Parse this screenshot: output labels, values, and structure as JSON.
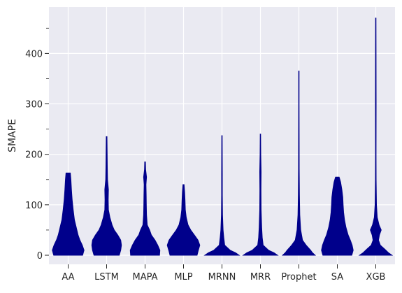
{
  "chart_data": {
    "type": "violin",
    "ylabel": "SMAPE",
    "xlabel": "",
    "title": "",
    "ylim": [
      -18,
      492
    ],
    "yticks_major": [
      0,
      100,
      200,
      300,
      400
    ],
    "yticks_minor": [
      50,
      150,
      250,
      350,
      450
    ],
    "grid": true,
    "categories": [
      "AA",
      "LSTM",
      "MAPA",
      "MLP",
      "MRNN",
      "MRR",
      "Prophet",
      "SA",
      "XGB"
    ],
    "colors": {
      "background": "#eaeaf2",
      "grid": "#ffffff",
      "violin": "#00008b"
    },
    "violins": [
      {
        "category": "AA",
        "profile": [
          [
            0,
            0.8
          ],
          [
            10,
            0.88
          ],
          [
            20,
            0.78
          ],
          [
            30,
            0.65
          ],
          [
            40,
            0.55
          ],
          [
            55,
            0.45
          ],
          [
            70,
            0.35
          ],
          [
            90,
            0.28
          ],
          [
            110,
            0.22
          ],
          [
            130,
            0.18
          ],
          [
            150,
            0.15
          ],
          [
            163,
            0.12
          ]
        ]
      },
      {
        "category": "LSTM",
        "profile": [
          [
            0,
            0.7
          ],
          [
            10,
            0.78
          ],
          [
            20,
            0.82
          ],
          [
            30,
            0.78
          ],
          [
            40,
            0.62
          ],
          [
            50,
            0.42
          ],
          [
            60,
            0.3
          ],
          [
            75,
            0.18
          ],
          [
            90,
            0.1
          ],
          [
            110,
            0.09
          ],
          [
            130,
            0.1
          ],
          [
            150,
            0.05
          ],
          [
            175,
            0.04
          ],
          [
            200,
            0.03
          ],
          [
            235,
            0.02
          ]
        ]
      },
      {
        "category": "MAPA",
        "profile": [
          [
            0,
            0.8
          ],
          [
            10,
            0.82
          ],
          [
            20,
            0.7
          ],
          [
            30,
            0.55
          ],
          [
            40,
            0.35
          ],
          [
            50,
            0.25
          ],
          [
            60,
            0.12
          ],
          [
            80,
            0.08
          ],
          [
            100,
            0.07
          ],
          [
            120,
            0.06
          ],
          [
            140,
            0.05
          ],
          [
            155,
            0.08
          ],
          [
            170,
            0.03
          ],
          [
            185,
            0.02
          ]
        ]
      },
      {
        "category": "MLP",
        "profile": [
          [
            0,
            0.75
          ],
          [
            10,
            0.82
          ],
          [
            20,
            0.9
          ],
          [
            30,
            0.8
          ],
          [
            40,
            0.6
          ],
          [
            50,
            0.4
          ],
          [
            60,
            0.25
          ],
          [
            75,
            0.15
          ],
          [
            90,
            0.1
          ],
          [
            110,
            0.08
          ],
          [
            125,
            0.06
          ],
          [
            140,
            0.03
          ]
        ]
      },
      {
        "category": "MRNN",
        "profile": [
          [
            0,
            0.95
          ],
          [
            5,
            0.75
          ],
          [
            10,
            0.45
          ],
          [
            20,
            0.15
          ],
          [
            35,
            0.1
          ],
          [
            50,
            0.06
          ],
          [
            80,
            0.03
          ],
          [
            120,
            0.02
          ],
          [
            160,
            0.02
          ],
          [
            200,
            0.015
          ],
          [
            237,
            0.01
          ]
        ]
      },
      {
        "category": "MRR",
        "profile": [
          [
            0,
            0.95
          ],
          [
            5,
            0.75
          ],
          [
            10,
            0.45
          ],
          [
            20,
            0.15
          ],
          [
            35,
            0.1
          ],
          [
            55,
            0.07
          ],
          [
            90,
            0.04
          ],
          [
            130,
            0.03
          ],
          [
            165,
            0.04
          ],
          [
            200,
            0.02
          ],
          [
            240,
            0.01
          ]
        ]
      },
      {
        "category": "Prophet",
        "profile": [
          [
            0,
            0.9
          ],
          [
            5,
            0.75
          ],
          [
            10,
            0.65
          ],
          [
            20,
            0.4
          ],
          [
            30,
            0.2
          ],
          [
            50,
            0.1
          ],
          [
            80,
            0.05
          ],
          [
            120,
            0.03
          ],
          [
            170,
            0.02
          ],
          [
            240,
            0.015
          ],
          [
            300,
            0.01
          ],
          [
            365,
            0.01
          ]
        ]
      },
      {
        "category": "SA",
        "profile": [
          [
            0,
            0.8
          ],
          [
            10,
            0.88
          ],
          [
            20,
            0.82
          ],
          [
            30,
            0.72
          ],
          [
            40,
            0.6
          ],
          [
            55,
            0.48
          ],
          [
            70,
            0.4
          ],
          [
            85,
            0.35
          ],
          [
            100,
            0.32
          ],
          [
            115,
            0.3
          ],
          [
            130,
            0.25
          ],
          [
            145,
            0.18
          ],
          [
            155,
            0.1
          ]
        ]
      },
      {
        "category": "XGB",
        "profile": [
          [
            0,
            0.9
          ],
          [
            5,
            0.7
          ],
          [
            12,
            0.5
          ],
          [
            20,
            0.25
          ],
          [
            30,
            0.15
          ],
          [
            40,
            0.2
          ],
          [
            50,
            0.3
          ],
          [
            60,
            0.18
          ],
          [
            75,
            0.08
          ],
          [
            100,
            0.04
          ],
          [
            150,
            0.02
          ],
          [
            200,
            0.015
          ],
          [
            300,
            0.02
          ],
          [
            400,
            0.015
          ],
          [
            470,
            0.01
          ]
        ]
      }
    ]
  }
}
